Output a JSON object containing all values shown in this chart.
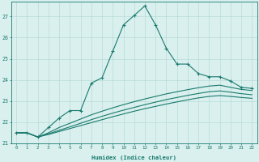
{
  "xlabel": "Humidex (Indice chaleur)",
  "background_color": "#d9f0ee",
  "line_color": "#1a7a6e",
  "grid_color": "#b8dbd8",
  "ylim": [
    21,
    27.7
  ],
  "xlim": [
    -0.5,
    22.5
  ],
  "yticks": [
    21,
    22,
    23,
    24,
    25,
    26,
    27
  ],
  "xticks": [
    0,
    1,
    2,
    3,
    4,
    5,
    6,
    7,
    8,
    9,
    10,
    11,
    12,
    13,
    14,
    15,
    16,
    17,
    18,
    19,
    20,
    21,
    22
  ],
  "line1_x": [
    0,
    1,
    2,
    3,
    4,
    5,
    6,
    7,
    8,
    9,
    10,
    11,
    12,
    13,
    14,
    15,
    16,
    17,
    18,
    19,
    20,
    21,
    22
  ],
  "line1_y": [
    21.5,
    21.5,
    21.3,
    21.75,
    22.2,
    22.55,
    22.55,
    23.85,
    24.1,
    25.35,
    26.6,
    27.05,
    27.5,
    26.6,
    25.5,
    24.75,
    24.75,
    24.3,
    24.15,
    24.15,
    23.95,
    23.65,
    23.6
  ],
  "line2_x": [
    0,
    1,
    2,
    3,
    4,
    5,
    6,
    7,
    8,
    9,
    10,
    11,
    12,
    13,
    14,
    15,
    16,
    17,
    18,
    19,
    20,
    21,
    22
  ],
  "line2_y": [
    21.5,
    21.5,
    21.3,
    21.5,
    21.75,
    21.95,
    22.15,
    22.35,
    22.52,
    22.68,
    22.83,
    22.97,
    23.1,
    23.22,
    23.34,
    23.44,
    23.54,
    23.63,
    23.71,
    23.75,
    23.65,
    23.55,
    23.5
  ],
  "line3_x": [
    0,
    1,
    2,
    3,
    4,
    5,
    6,
    7,
    8,
    9,
    10,
    11,
    12,
    13,
    14,
    15,
    16,
    17,
    18,
    19,
    20,
    21,
    22
  ],
  "line3_y": [
    21.5,
    21.5,
    21.3,
    21.45,
    21.62,
    21.78,
    21.95,
    22.12,
    22.28,
    22.43,
    22.57,
    22.7,
    22.83,
    22.95,
    23.07,
    23.17,
    23.27,
    23.36,
    23.44,
    23.48,
    23.42,
    23.35,
    23.3
  ],
  "line4_x": [
    0,
    1,
    2,
    3,
    4,
    5,
    6,
    7,
    8,
    9,
    10,
    11,
    12,
    13,
    14,
    15,
    16,
    17,
    18,
    19,
    20,
    21,
    22
  ],
  "line4_y": [
    21.5,
    21.5,
    21.3,
    21.42,
    21.56,
    21.7,
    21.84,
    21.98,
    22.12,
    22.26,
    22.39,
    22.52,
    22.64,
    22.75,
    22.86,
    22.96,
    23.06,
    23.15,
    23.22,
    23.26,
    23.22,
    23.17,
    23.13
  ]
}
